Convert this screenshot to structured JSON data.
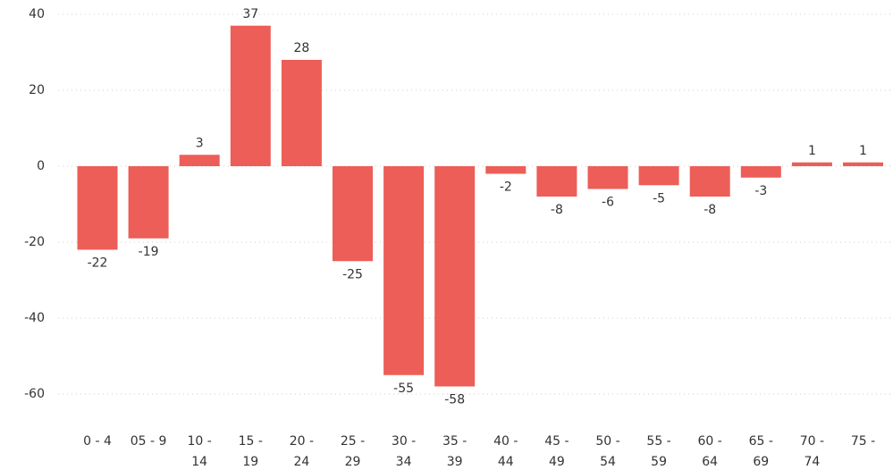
{
  "chart_data": {
    "type": "bar",
    "categories": [
      "0 - 4",
      "05 - 9",
      "10 - 14",
      "15 - 19",
      "20 - 24",
      "25 - 29",
      "30 - 34",
      "35 - 39",
      "40 - 44",
      "45 - 49",
      "50 - 54",
      "55 - 59",
      "60 - 64",
      "65 - 69",
      "70 - 74",
      "75 -"
    ],
    "values": [
      -22,
      -19,
      3,
      37,
      28,
      -25,
      -55,
      -58,
      -2,
      -8,
      -6,
      -5,
      -8,
      -3,
      1,
      1
    ],
    "color": "#ec5e57",
    "ylim": [
      -62,
      40
    ],
    "yticks": [
      -60,
      -40,
      -20,
      0,
      20,
      40
    ],
    "grid": true
  }
}
